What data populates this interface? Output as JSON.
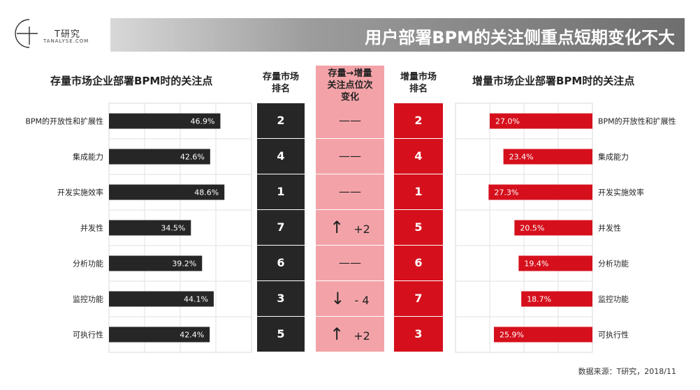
{
  "header": {
    "logo_text": "T研究",
    "logo_sub": "TANALYSE.COM",
    "title": "用户部署BPM的关注侧重点短期变化不大"
  },
  "left_section_title": "存量市场企业部署BPM时的关注点",
  "right_section_title": "增量市场企业部署BPM时的关注点",
  "column_headers": {
    "stock_rank": [
      "存量市场",
      "排名"
    ],
    "change": [
      "存量→增量",
      "关注点位次",
      "变化"
    ],
    "incr_rank": [
      "增量市场",
      "排名"
    ]
  },
  "chart_data": [
    {
      "type": "bar",
      "orientation": "horizontal",
      "title": "存量市场企业部署BPM时的关注点",
      "categories": [
        "BPM的开放性和扩展性",
        "集成能力",
        "开发实施效率",
        "并发性",
        "分析功能",
        "监控功能",
        "可执行性"
      ],
      "values": [
        46.9,
        42.6,
        48.6,
        34.5,
        39.2,
        44.1,
        42.4
      ],
      "value_labels": [
        "46.9%",
        "42.6%",
        "48.6%",
        "34.5%",
        "39.2%",
        "44.1%",
        "42.4%"
      ],
      "xlim": [
        0,
        60
      ],
      "grid": true,
      "color": "#262626"
    },
    {
      "type": "bar",
      "orientation": "horizontal",
      "title": "增量市场企业部署BPM时的关注点",
      "categories": [
        "BPM的开放性和扩展性",
        "集成能力",
        "开发实施效率",
        "并发性",
        "分析功能",
        "监控功能",
        "可执行性"
      ],
      "values": [
        27.0,
        23.4,
        27.3,
        20.5,
        19.4,
        18.7,
        25.9
      ],
      "value_labels": [
        "27.0%",
        "23.4%",
        "27.3%",
        "20.5%",
        "19.4%",
        "18.7%",
        "25.9%"
      ],
      "xlim": [
        0,
        36
      ],
      "direction": "right-to-left",
      "grid": true,
      "color": "#d5101c"
    },
    {
      "type": "table",
      "columns": [
        "存量市场排名",
        "存量→增量关注点位次变化",
        "增量市场排名"
      ],
      "stock_rank": [
        "2",
        "4",
        "1",
        "7",
        "6",
        "3",
        "5"
      ],
      "change": [
        {
          "arrow": "",
          "text": "——"
        },
        {
          "arrow": "",
          "text": "——"
        },
        {
          "arrow": "",
          "text": "——"
        },
        {
          "arrow": "↑",
          "text": "+2"
        },
        {
          "arrow": "",
          "text": "——"
        },
        {
          "arrow": "↓",
          "text": "- 4"
        },
        {
          "arrow": "↑",
          "text": "+2"
        }
      ],
      "incr_rank": [
        "2",
        "4",
        "1",
        "5",
        "6",
        "7",
        "3"
      ]
    }
  ],
  "colors": {
    "stock_bar": "#262626",
    "incr_bar": "#d5101c",
    "stock_rank_bg": "#262626",
    "change_bg": "#f3a3a8",
    "incr_rank_bg": "#d5101c"
  },
  "source": "数据来源：T研究，2018/11"
}
